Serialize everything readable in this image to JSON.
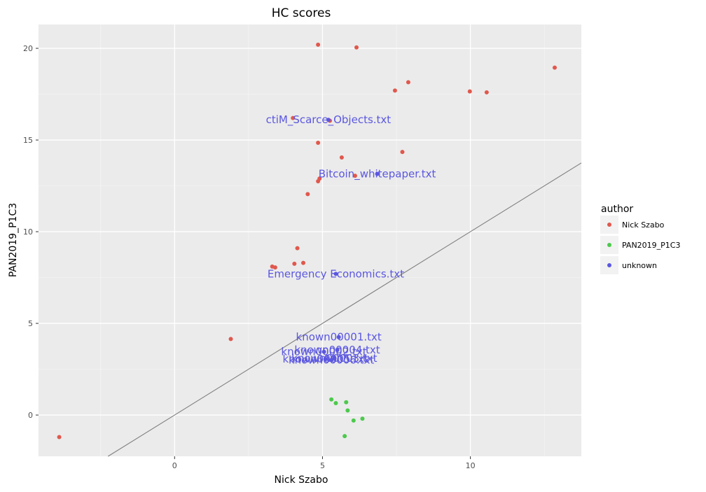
{
  "chart_data": {
    "type": "scatter",
    "title": "HC scores",
    "xlabel": "Nick Szabo",
    "ylabel": "PAN2019_P1C3",
    "xlim": [
      -4.6,
      13.75
    ],
    "ylim": [
      -2.25,
      21.3
    ],
    "x_ticks": [
      0,
      5,
      10
    ],
    "y_ticks": [
      0,
      5,
      10,
      15,
      20
    ],
    "grid": true,
    "reference_line": {
      "slope": 1,
      "intercept": 0
    },
    "legend": {
      "title": "author",
      "placement": "right",
      "entries": [
        {
          "name": "Nick Szabo",
          "color": "#e0584d"
        },
        {
          "name": "PAN2019_P1C3",
          "color": "#4cc94c"
        },
        {
          "name": "unknown",
          "color": "#5b57e0"
        }
      ]
    },
    "series": [
      {
        "name": "Nick Szabo",
        "color": "#e0584d",
        "points": [
          {
            "x": 4.85,
            "y": 20.2
          },
          {
            "x": 6.15,
            "y": 20.05
          },
          {
            "x": 12.85,
            "y": 18.95
          },
          {
            "x": 7.9,
            "y": 18.15
          },
          {
            "x": 7.45,
            "y": 17.7
          },
          {
            "x": 9.98,
            "y": 17.65
          },
          {
            "x": 10.55,
            "y": 17.6
          },
          {
            "x": 4.0,
            "y": 16.2
          },
          {
            "x": 5.25,
            "y": 16.05
          },
          {
            "x": 4.85,
            "y": 14.85
          },
          {
            "x": 5.65,
            "y": 14.05
          },
          {
            "x": 7.7,
            "y": 14.35
          },
          {
            "x": 6.1,
            "y": 13.05
          },
          {
            "x": 4.9,
            "y": 12.9
          },
          {
            "x": 4.85,
            "y": 12.75
          },
          {
            "x": 4.5,
            "y": 12.05
          },
          {
            "x": 4.15,
            "y": 9.1
          },
          {
            "x": 4.35,
            "y": 8.3
          },
          {
            "x": 4.05,
            "y": 8.25
          },
          {
            "x": 3.3,
            "y": 8.1
          },
          {
            "x": 3.4,
            "y": 8.05
          },
          {
            "x": 1.9,
            "y": 4.15
          },
          {
            "x": -3.9,
            "y": -1.2
          }
        ]
      },
      {
        "name": "PAN2019_P1C3",
        "color": "#4cc94c",
        "points": [
          {
            "x": 5.3,
            "y": 0.85
          },
          {
            "x": 5.45,
            "y": 0.65
          },
          {
            "x": 5.8,
            "y": 0.7
          },
          {
            "x": 5.85,
            "y": 0.25
          },
          {
            "x": 6.05,
            "y": -0.3
          },
          {
            "x": 6.35,
            "y": -0.2
          },
          {
            "x": 5.75,
            "y": -1.15
          }
        ]
      },
      {
        "name": "unknown",
        "color": "#5b57e0",
        "points": [
          {
            "x": 5.2,
            "y": 16.1,
            "label": "ctiM_Scarce_Objects.txt"
          },
          {
            "x": 6.85,
            "y": 13.15,
            "label": "Bitcoin_whitepaper.txt"
          },
          {
            "x": 5.45,
            "y": 7.7,
            "label": "Emergency Economics.txt"
          },
          {
            "x": 5.55,
            "y": 4.25,
            "label": "known00001.txt"
          },
          {
            "x": 5.5,
            "y": 3.55,
            "label": "known00004.txt"
          },
          {
            "x": 5.05,
            "y": 3.45,
            "label": "known00002.txt"
          },
          {
            "x": 5.4,
            "y": 3.1,
            "label": "known00003.txt"
          },
          {
            "x": 5.1,
            "y": 3.05,
            "label": "known00005.txt"
          },
          {
            "x": 5.3,
            "y": 3.0,
            "label": "known00006.txt"
          }
        ]
      }
    ]
  }
}
